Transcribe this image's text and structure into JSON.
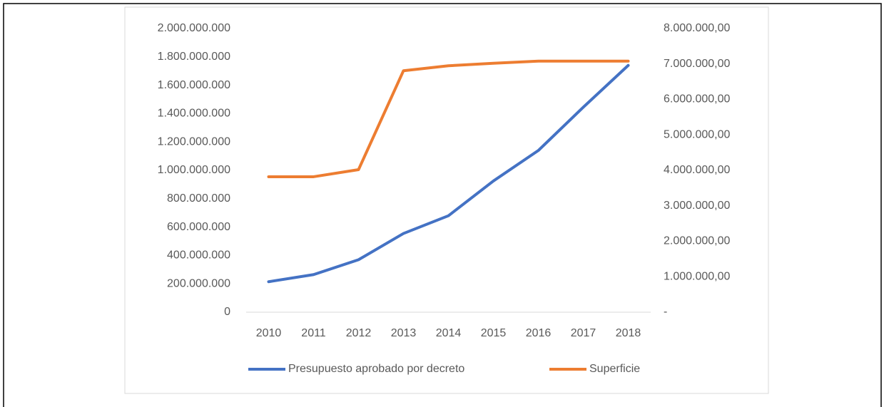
{
  "chart_data": {
    "type": "line",
    "categories": [
      "2010",
      "2011",
      "2012",
      "2013",
      "2014",
      "2015",
      "2016",
      "2017",
      "2018"
    ],
    "series": [
      {
        "name": "Presupuesto aprobado por decreto",
        "color": "#4472c4",
        "axis": "y",
        "values": [
          215000000,
          265000000,
          370000000,
          555000000,
          680000000,
          925000000,
          1140000000,
          1445000000,
          1740000000
        ]
      },
      {
        "name": "Superficie",
        "color": "#ed7d31",
        "axis": "y2",
        "values": [
          3820000,
          3820000,
          4020000,
          6810000,
          6950000,
          7020000,
          7080000,
          7080000,
          7080000
        ]
      }
    ],
    "ylim": [
      0,
      2000000000
    ],
    "yticks": [
      0,
      {
        "value": 200000000,
        "label": "200.000.000"
      },
      {
        "value": 400000000,
        "label": "400.000.000"
      },
      {
        "value": 600000000,
        "label": "600.000.000"
      },
      {
        "value": 800000000,
        "label": "800.000.000"
      },
      {
        "value": 1000000000,
        "label": "1.000.000.000"
      },
      {
        "value": 1200000000,
        "label": "1.200.000.000"
      },
      {
        "value": 1400000000,
        "label": "1.400.000.000"
      },
      {
        "value": 1600000000,
        "label": "1.600.000.000"
      },
      {
        "value": 1800000000,
        "label": "1.800.000.000"
      },
      {
        "value": 2000000000,
        "label": "2.000.000.000"
      }
    ],
    "y2lim": [
      0,
      8000000
    ],
    "y2ticks": [
      {
        "value": 0,
        "label": "-"
      },
      {
        "value": 1000000,
        "label": "1.000.000,00"
      },
      {
        "value": 2000000,
        "label": "2.000.000,00"
      },
      {
        "value": 3000000,
        "label": "3.000.000,00"
      },
      {
        "value": 4000000,
        "label": "4.000.000,00"
      },
      {
        "value": 5000000,
        "label": "5.000.000,00"
      },
      {
        "value": 6000000,
        "label": "6.000.000,00"
      },
      {
        "value": 7000000,
        "label": "7.000.000,00"
      },
      {
        "value": 8000000,
        "label": "8.000.000,00"
      }
    ],
    "grid": false,
    "legend": "bottom"
  }
}
